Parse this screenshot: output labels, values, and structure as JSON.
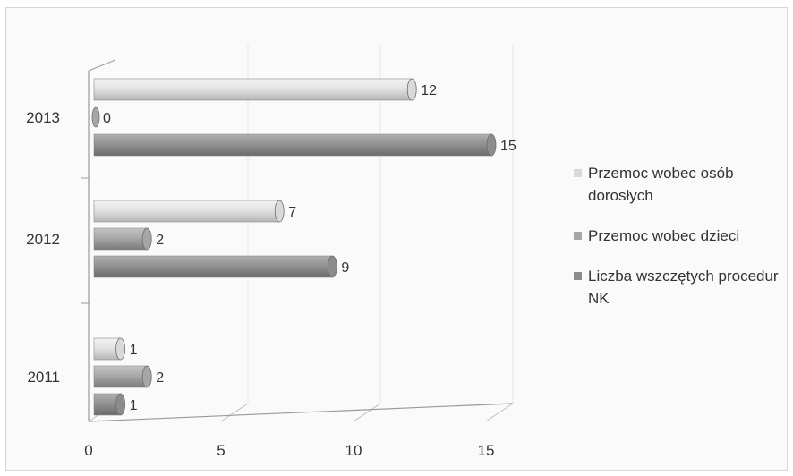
{
  "chart_data": {
    "type": "bar",
    "orientation": "horizontal",
    "categories": [
      "2011",
      "2012",
      "2013"
    ],
    "series": [
      {
        "name": "Przemoc wobec osób dorosłych",
        "values": [
          1,
          7,
          12
        ],
        "color": "#d9d9d9"
      },
      {
        "name": "Przemoc wobec dzieci",
        "values": [
          2,
          2,
          0
        ],
        "color": "#a6a6a6"
      },
      {
        "name": "Liczba wszczętych procedur NK",
        "values": [
          1,
          9,
          15
        ],
        "color": "#8c8c8c"
      }
    ],
    "x_ticks": [
      "0",
      "5",
      "10",
      "15"
    ],
    "xlim": [
      0,
      15
    ],
    "title": "",
    "xlabel": "",
    "ylabel": "",
    "grid": true,
    "legend_position": "right"
  }
}
